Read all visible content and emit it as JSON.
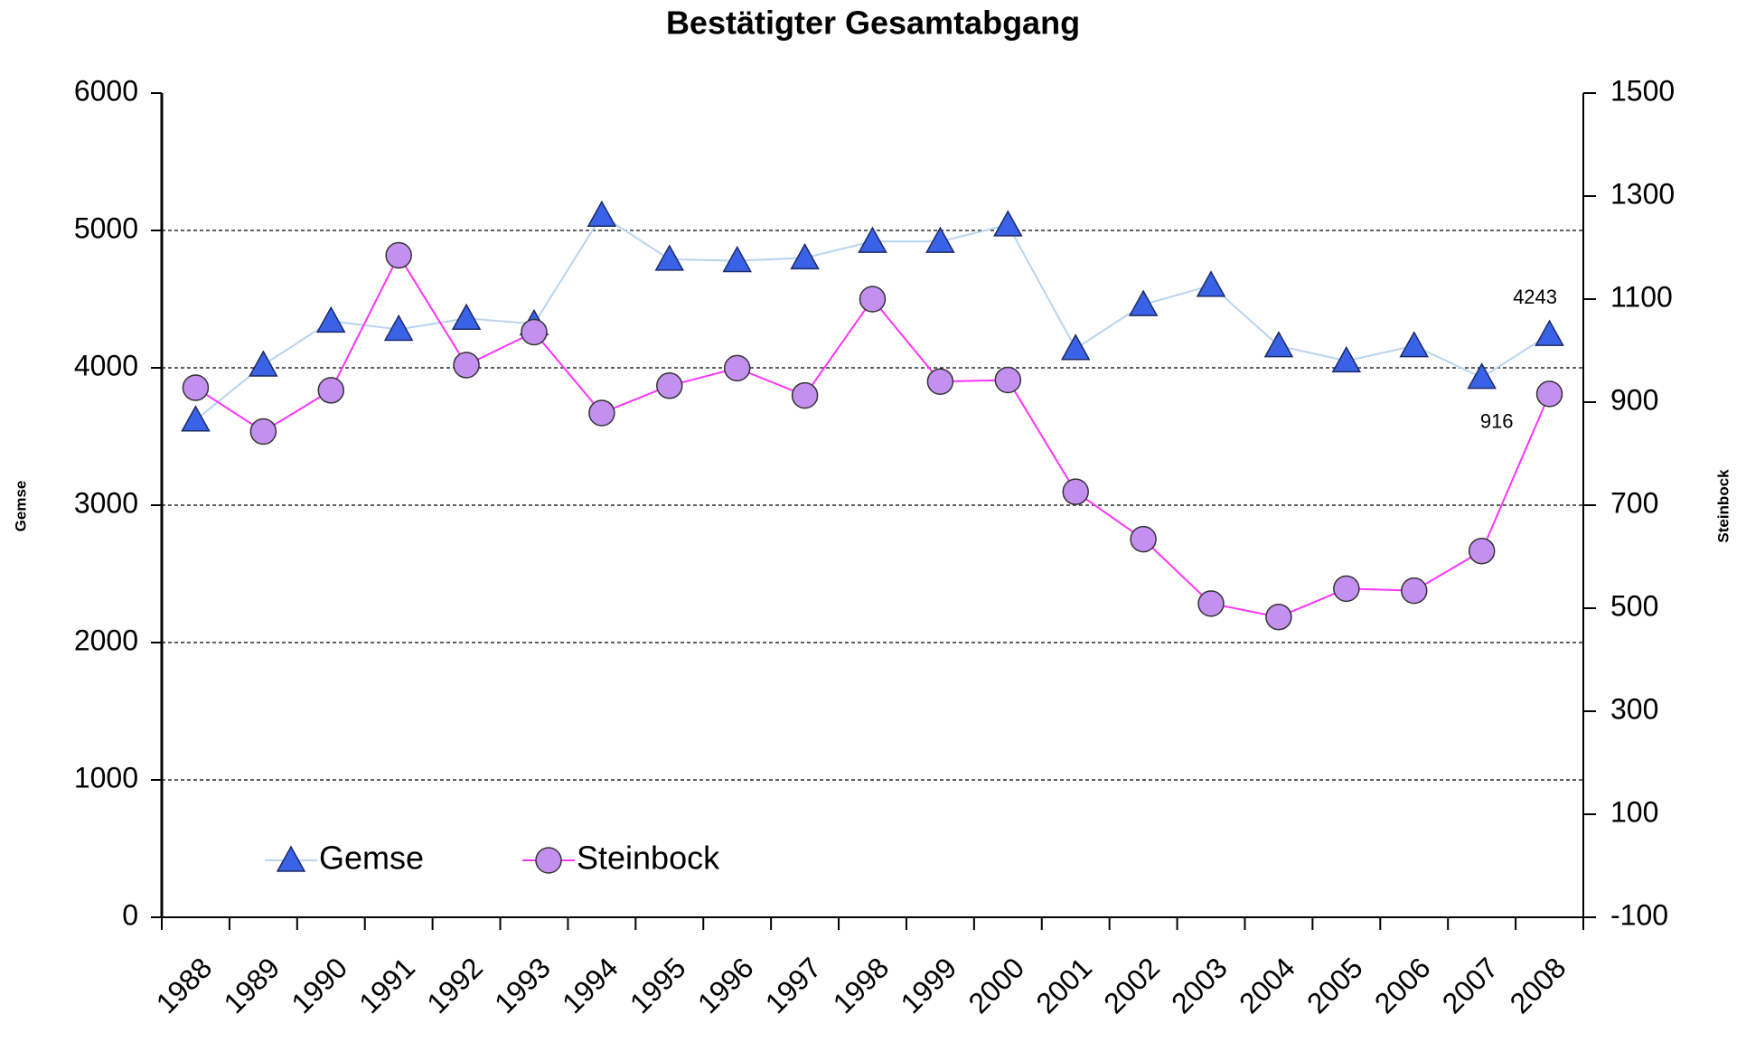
{
  "chart_data": {
    "type": "line",
    "title": "Bestätigter Gesamtabgang",
    "ylabel": "Gemse",
    "y2label": "Steinbock",
    "categories": [
      "1988",
      "1989",
      "1990",
      "1991",
      "1992",
      "1993",
      "1994",
      "1995",
      "1996",
      "1997",
      "1998",
      "1999",
      "2000",
      "2001",
      "2002",
      "2003",
      "2004",
      "2005",
      "2006",
      "2007",
      "2008"
    ],
    "series": [
      {
        "name": "Gemse",
        "color": "#3a62e6",
        "line_color": "#b8d4f0",
        "marker": "triangle",
        "values": [
          3620,
          4020,
          4340,
          4280,
          4360,
          4320,
          5110,
          4790,
          4780,
          4800,
          4920,
          4920,
          5040,
          4140,
          4460,
          4600,
          4160,
          4050,
          4160,
          3930,
          4243
        ],
        "value_labels": [
          null,
          null,
          null,
          null,
          null,
          null,
          null,
          null,
          null,
          null,
          null,
          null,
          null,
          null,
          null,
          null,
          null,
          null,
          null,
          null,
          "4243"
        ]
      },
      {
        "name": "Steinbock",
        "color": "#c490f0",
        "line_color": "#ff33ff",
        "marker": "circle",
        "axis": "y2",
        "values": [
          928,
          843,
          923,
          1185,
          972,
          1036,
          879,
          932,
          966,
          913,
          1100,
          940,
          943,
          726,
          634,
          509,
          483,
          538,
          534,
          611,
          916
        ],
        "value_labels": [
          null,
          null,
          null,
          null,
          null,
          null,
          null,
          null,
          null,
          null,
          null,
          null,
          null,
          null,
          null,
          null,
          null,
          null,
          null,
          null,
          "916"
        ]
      }
    ],
    "ylim": [
      0,
      6000
    ],
    "yticks": [
      0,
      1000,
      2000,
      3000,
      4000,
      5000,
      6000
    ],
    "y2lim": [
      -100,
      1500
    ],
    "y2ticks": [
      -100,
      100,
      300,
      500,
      700,
      900,
      1100,
      1300,
      1500
    ],
    "grid": true,
    "legend": "lower left"
  }
}
